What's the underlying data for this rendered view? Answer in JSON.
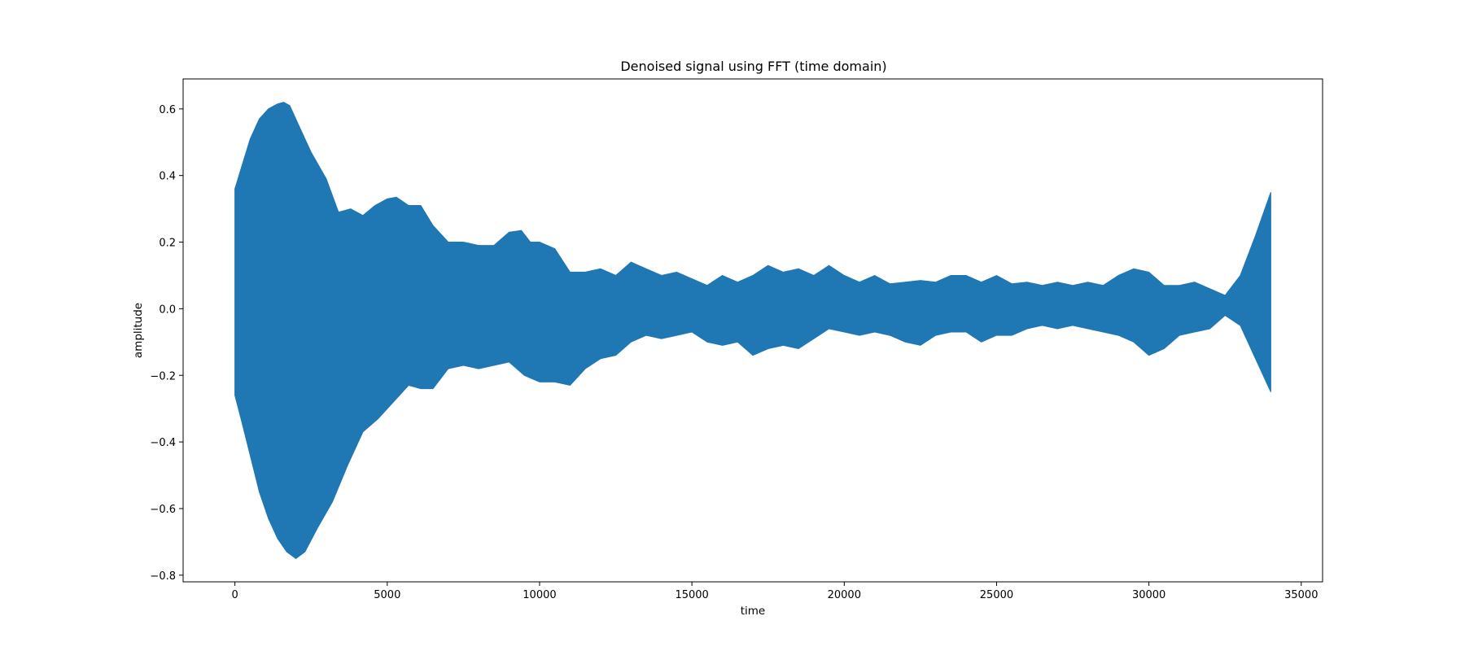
{
  "chart_data": {
    "type": "line",
    "title": "Denoised signal using FFT (time domain)",
    "xlabel": "time",
    "ylabel": "amplitude",
    "xlim": [
      -1700,
      35700
    ],
    "ylim": [
      -0.82,
      0.69
    ],
    "xticks": [
      0,
      5000,
      10000,
      15000,
      20000,
      25000,
      30000,
      35000
    ],
    "xtick_labels": [
      "0",
      "5000",
      "10000",
      "15000",
      "20000",
      "25000",
      "30000",
      "35000"
    ],
    "yticks": [
      -0.8,
      -0.6,
      -0.4,
      -0.2,
      0.0,
      0.2,
      0.4,
      0.6
    ],
    "ytick_labels": [
      "−0.8",
      "−0.6",
      "−0.4",
      "−0.2",
      "0.0",
      "0.2",
      "0.4",
      "0.6"
    ],
    "grid": false,
    "legend": "none",
    "series": [
      {
        "color": "#1f77b4",
        "description_of_shape": "rapid oscillation shown by its upper and lower envelope",
        "upper_envelope": {
          "x": [
            0,
            200,
            500,
            800,
            1100,
            1400,
            1600,
            1800,
            2100,
            2500,
            3000,
            3400,
            3800,
            4200,
            4600,
            5000,
            5300,
            5700,
            6100,
            6500,
            7000,
            7500,
            8000,
            8500,
            9000,
            9400,
            9700,
            10000,
            10500,
            11000,
            11500,
            12000,
            12500,
            13000,
            13500,
            14000,
            14500,
            15000,
            15500,
            16000,
            16500,
            17000,
            17500,
            18000,
            18500,
            19000,
            19500,
            20000,
            20500,
            21000,
            21500,
            22000,
            22500,
            23000,
            23500,
            24000,
            24500,
            25000,
            25500,
            26000,
            26500,
            27000,
            27500,
            28000,
            28500,
            29000,
            29500,
            30000,
            30500,
            31000,
            31500,
            32000,
            32500,
            33000,
            33500,
            34000
          ],
          "y": [
            0.36,
            0.42,
            0.51,
            0.57,
            0.6,
            0.615,
            0.62,
            0.61,
            0.55,
            0.47,
            0.39,
            0.29,
            0.3,
            0.28,
            0.31,
            0.33,
            0.335,
            0.31,
            0.31,
            0.25,
            0.2,
            0.2,
            0.19,
            0.19,
            0.23,
            0.235,
            0.2,
            0.2,
            0.18,
            0.11,
            0.11,
            0.12,
            0.1,
            0.14,
            0.12,
            0.1,
            0.11,
            0.09,
            0.07,
            0.1,
            0.08,
            0.1,
            0.13,
            0.11,
            0.12,
            0.1,
            0.13,
            0.1,
            0.08,
            0.1,
            0.075,
            0.08,
            0.085,
            0.08,
            0.1,
            0.1,
            0.08,
            0.1,
            0.075,
            0.08,
            0.07,
            0.08,
            0.07,
            0.08,
            0.07,
            0.1,
            0.12,
            0.11,
            0.07,
            0.07,
            0.08,
            0.06,
            0.04,
            0.1,
            0.22,
            0.35
          ]
        },
        "lower_envelope": {
          "x": [
            0,
            200,
            500,
            800,
            1100,
            1400,
            1700,
            2000,
            2300,
            2700,
            3200,
            3700,
            4200,
            4700,
            5200,
            5700,
            6100,
            6500,
            7000,
            7500,
            8000,
            8500,
            9000,
            9500,
            10000,
            10500,
            11000,
            11500,
            12000,
            12500,
            13000,
            13500,
            14000,
            14500,
            15000,
            15500,
            16000,
            16500,
            17000,
            17500,
            18000,
            18500,
            19000,
            19500,
            20000,
            20500,
            21000,
            21500,
            22000,
            22500,
            23000,
            23500,
            24000,
            24500,
            25000,
            25500,
            26000,
            26500,
            27000,
            27500,
            28000,
            28500,
            29000,
            29500,
            30000,
            30500,
            31000,
            31500,
            32000,
            32500,
            33000,
            33500,
            34000
          ],
          "y": [
            -0.26,
            -0.33,
            -0.44,
            -0.55,
            -0.63,
            -0.69,
            -0.73,
            -0.75,
            -0.73,
            -0.66,
            -0.58,
            -0.47,
            -0.37,
            -0.33,
            -0.28,
            -0.23,
            -0.24,
            -0.24,
            -0.18,
            -0.17,
            -0.18,
            -0.17,
            -0.16,
            -0.2,
            -0.22,
            -0.22,
            -0.23,
            -0.18,
            -0.15,
            -0.14,
            -0.1,
            -0.08,
            -0.09,
            -0.08,
            -0.07,
            -0.1,
            -0.11,
            -0.1,
            -0.14,
            -0.12,
            -0.11,
            -0.12,
            -0.09,
            -0.06,
            -0.07,
            -0.08,
            -0.07,
            -0.08,
            -0.1,
            -0.11,
            -0.08,
            -0.07,
            -0.07,
            -0.1,
            -0.08,
            -0.08,
            -0.06,
            -0.05,
            -0.06,
            -0.05,
            -0.06,
            -0.07,
            -0.08,
            -0.1,
            -0.14,
            -0.12,
            -0.08,
            -0.07,
            -0.06,
            -0.02,
            -0.05,
            -0.15,
            -0.25
          ]
        }
      }
    ]
  }
}
